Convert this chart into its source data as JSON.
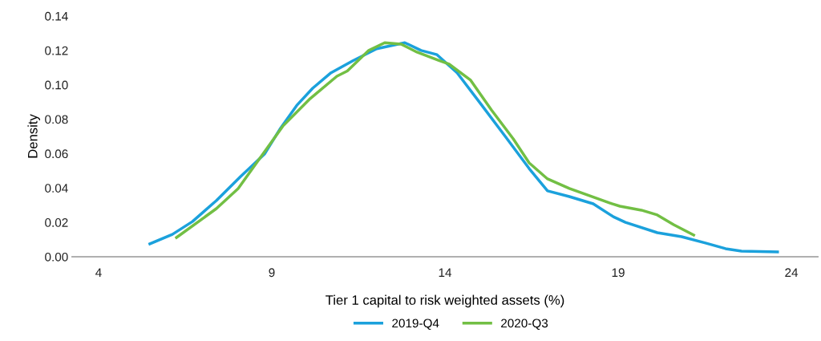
{
  "chart_data": {
    "type": "line",
    "xlabel": "Tier 1 capital to risk weighted assets (%)",
    "ylabel": "Density",
    "xlim": [
      3.24,
      24.76
    ],
    "xticks": [
      4,
      9,
      14,
      19,
      24
    ],
    "ylim": [
      0,
      0.14
    ],
    "yticks": [
      {
        "value": 0,
        "label": "0.00"
      },
      {
        "value": 0.02,
        "label": "0.02"
      },
      {
        "value": 0.04,
        "label": "0.04"
      },
      {
        "value": 0.06,
        "label": "0.06"
      },
      {
        "value": 0.08,
        "label": "0.08"
      },
      {
        "value": 0.1,
        "label": "0.10"
      },
      {
        "value": 0.12,
        "label": "0.12"
      },
      {
        "value": 0.14,
        "label": "0.14"
      }
    ],
    "grid": false,
    "legend": "bottom",
    "marker": "none",
    "line_style": "solid",
    "series": [
      {
        "name": "2019-Q4",
        "color": "#1ba1dc",
        "x": [
          5.48,
          6.13,
          6.71,
          7.4,
          8.1,
          8.79,
          9.25,
          9.72,
          10.18,
          10.71,
          11.34,
          12.03,
          12.73,
          12.84,
          13.31,
          13.77,
          14.35,
          15.04,
          15.74,
          16.43,
          16.96,
          17.59,
          18.28,
          18.86,
          19.21,
          20.13,
          20.83,
          21.52,
          22.1,
          22.56,
          23.6
        ],
        "values": [
          0.0075,
          0.013,
          0.0205,
          0.0327,
          0.0467,
          0.0597,
          0.0747,
          0.088,
          0.098,
          0.107,
          0.114,
          0.121,
          0.124,
          0.1245,
          0.12,
          0.1175,
          0.107,
          0.0887,
          0.07,
          0.0513,
          0.0383,
          0.035,
          0.0308,
          0.0233,
          0.02,
          0.014,
          0.0117,
          0.008,
          0.0047,
          0.0033,
          0.0028
        ]
      },
      {
        "name": "2020-Q3",
        "color": "#72bf44",
        "x": [
          6.25,
          7.4,
          8.03,
          8.56,
          9.32,
          10.11,
          10.88,
          11.18,
          11.8,
          12.26,
          12.73,
          13.19,
          13.81,
          14.12,
          14.74,
          15.34,
          15.97,
          16.43,
          16.96,
          17.59,
          18.75,
          19.05,
          19.67,
          20.13,
          20.6,
          21.18
        ],
        "values": [
          0.0112,
          0.028,
          0.0397,
          0.0546,
          0.076,
          0.092,
          0.105,
          0.108,
          0.12,
          0.1245,
          0.1237,
          0.119,
          0.1143,
          0.112,
          0.1027,
          0.0854,
          0.0686,
          0.0546,
          0.0453,
          0.0397,
          0.0313,
          0.0294,
          0.0271,
          0.0243,
          0.0187,
          0.0126
        ]
      }
    ]
  }
}
